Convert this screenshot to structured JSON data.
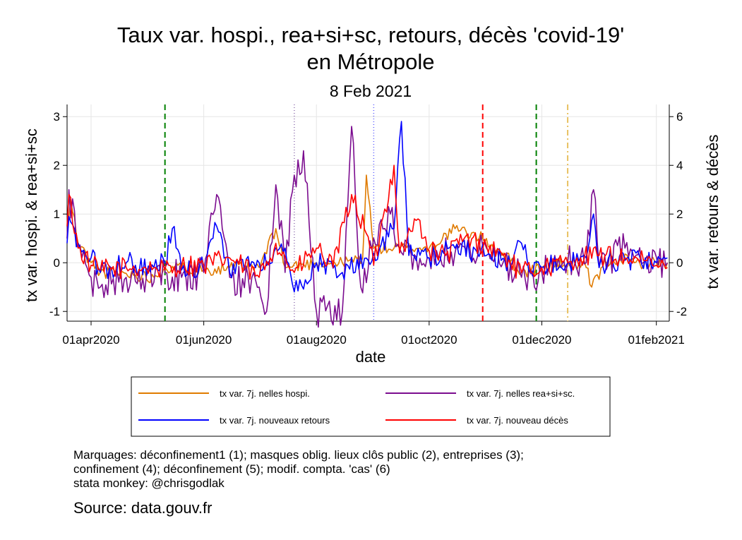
{
  "chart_data": {
    "type": "line",
    "title_line1": "Taux var. hospi., rea+si+sc, retours, décès 'covid-19'",
    "title_line2": "en Métropole",
    "subtitle": "8 Feb 2021",
    "xlabel": "date",
    "ylabel_left": "tx var. hospi. & rea+si+sc",
    "ylabel_right": "tx var. retours & décès",
    "x_range": [
      "2020-03-19",
      "2021-02-08"
    ],
    "x_ticks": [
      {
        "date": "2020-04-01",
        "label": "01apr2020"
      },
      {
        "date": "2020-06-01",
        "label": "01jun2020"
      },
      {
        "date": "2020-08-01",
        "label": "01aug2020"
      },
      {
        "date": "2020-10-01",
        "label": "01oct2020"
      },
      {
        "date": "2020-12-01",
        "label": "01dec2020"
      },
      {
        "date": "2021-02-01",
        "label": "01feb2021"
      }
    ],
    "ylim_left": [
      -1.2,
      3.25
    ],
    "yticks_left": [
      "-1",
      "0",
      "1",
      "2",
      "3"
    ],
    "ylim_right": [
      -2.4,
      6.5
    ],
    "yticks_right": [
      "-2",
      "0",
      "2",
      "4",
      "6"
    ],
    "grid": true,
    "legend_position": "bottom",
    "series": [
      {
        "name": "tx var. 7j. nelles hospi.",
        "color": "#E07B00",
        "axis": "left",
        "points": [
          [
            "2020-03-19",
            0.5
          ],
          [
            "2020-03-21",
            1.3
          ],
          [
            "2020-03-25",
            0.4
          ],
          [
            "2020-04-01",
            0.0
          ],
          [
            "2020-04-06",
            -0.2
          ],
          [
            "2020-04-15",
            -0.2
          ],
          [
            "2020-04-25",
            -0.25
          ],
          [
            "2020-05-05",
            -0.3
          ],
          [
            "2020-05-11",
            -0.1
          ],
          [
            "2020-05-20",
            -0.1
          ],
          [
            "2020-06-01",
            -0.15
          ],
          [
            "2020-06-15",
            -0.1
          ],
          [
            "2020-07-01",
            -0.1
          ],
          [
            "2020-07-10",
            0.7
          ],
          [
            "2020-07-15",
            -0.1
          ],
          [
            "2020-08-01",
            0.0
          ],
          [
            "2020-08-15",
            0.0
          ],
          [
            "2020-08-26",
            0.1
          ],
          [
            "2020-08-28",
            1.8
          ],
          [
            "2020-09-01",
            0.3
          ],
          [
            "2020-09-15",
            0.3
          ],
          [
            "2020-10-01",
            0.3
          ],
          [
            "2020-10-15",
            0.7
          ],
          [
            "2020-10-30",
            0.5
          ],
          [
            "2020-11-10",
            0.2
          ],
          [
            "2020-11-20",
            -0.2
          ],
          [
            "2020-12-01",
            -0.1
          ],
          [
            "2020-12-15",
            0.0
          ],
          [
            "2020-12-25",
            -0.1
          ],
          [
            "2020-12-28",
            -0.5
          ],
          [
            "2021-01-05",
            0.0
          ],
          [
            "2021-01-12",
            0.1
          ],
          [
            "2021-01-20",
            0.0
          ],
          [
            "2021-02-01",
            0.0
          ],
          [
            "2021-02-07",
            0.0
          ]
        ]
      },
      {
        "name": "tx var. 7j. nelles rea+si+sc.",
        "color": "#7B0C8F",
        "axis": "left",
        "points": [
          [
            "2020-03-19",
            0.5
          ],
          [
            "2020-03-20",
            1.5
          ],
          [
            "2020-03-25",
            0.3
          ],
          [
            "2020-04-01",
            -0.3
          ],
          [
            "2020-04-06",
            -0.5
          ],
          [
            "2020-04-20",
            -0.3
          ],
          [
            "2020-05-05",
            -0.4
          ],
          [
            "2020-05-11",
            -0.2
          ],
          [
            "2020-05-20",
            -0.3
          ],
          [
            "2020-06-01",
            -0.2
          ],
          [
            "2020-06-08",
            1.4
          ],
          [
            "2020-06-15",
            -0.3
          ],
          [
            "2020-07-01",
            -0.5
          ],
          [
            "2020-07-05",
            -1.0
          ],
          [
            "2020-07-10",
            1.6
          ],
          [
            "2020-07-15",
            -0.2
          ],
          [
            "2020-07-20",
            1.8
          ],
          [
            "2020-07-25",
            2.3
          ],
          [
            "2020-08-01",
            -1.0
          ],
          [
            "2020-08-15",
            -1.0
          ],
          [
            "2020-08-20",
            2.8
          ],
          [
            "2020-08-25",
            -0.5
          ],
          [
            "2020-09-01",
            0.5
          ],
          [
            "2020-09-10",
            1.0
          ],
          [
            "2020-09-15",
            0.3
          ],
          [
            "2020-10-01",
            0.1
          ],
          [
            "2020-10-15",
            0.2
          ],
          [
            "2020-11-01",
            0.3
          ],
          [
            "2020-11-10",
            0.0
          ],
          [
            "2020-11-20",
            -0.3
          ],
          [
            "2020-12-01",
            -0.2
          ],
          [
            "2020-12-15",
            0.0
          ],
          [
            "2020-12-25",
            0.0
          ],
          [
            "2020-12-29",
            1.5
          ],
          [
            "2021-01-01",
            -0.1
          ],
          [
            "2021-01-15",
            0.3
          ],
          [
            "2021-01-25",
            0.0
          ],
          [
            "2021-02-07",
            0.0
          ]
        ]
      },
      {
        "name": "tx var. 7j. nouveaux retours",
        "color": "#0000FF",
        "axis": "right",
        "points": [
          [
            "2020-03-19",
            0.8
          ],
          [
            "2020-03-20",
            1.9
          ],
          [
            "2020-03-25",
            0.8
          ],
          [
            "2020-04-01",
            0.2
          ],
          [
            "2020-04-06",
            -0.4
          ],
          [
            "2020-04-20",
            0.0
          ],
          [
            "2020-05-05",
            -0.2
          ],
          [
            "2020-05-11",
            0.0
          ],
          [
            "2020-05-15",
            1.4
          ],
          [
            "2020-05-20",
            -0.3
          ],
          [
            "2020-06-01",
            -0.2
          ],
          [
            "2020-06-08",
            1.5
          ],
          [
            "2020-06-15",
            -0.4
          ],
          [
            "2020-07-01",
            0.0
          ],
          [
            "2020-07-15",
            0.6
          ],
          [
            "2020-07-20",
            -1.2
          ],
          [
            "2020-08-01",
            0.0
          ],
          [
            "2020-08-15",
            -0.4
          ],
          [
            "2020-09-01",
            0.4
          ],
          [
            "2020-09-12",
            1.4
          ],
          [
            "2020-09-16",
            5.8
          ],
          [
            "2020-09-20",
            0.3
          ],
          [
            "2020-10-01",
            0.2
          ],
          [
            "2020-10-15",
            0.6
          ],
          [
            "2020-11-01",
            0.3
          ],
          [
            "2020-11-15",
            0.0
          ],
          [
            "2020-11-20",
            0.8
          ],
          [
            "2020-11-25",
            -0.3
          ],
          [
            "2020-12-01",
            -0.2
          ],
          [
            "2020-12-15",
            0.0
          ],
          [
            "2020-12-25",
            0.2
          ],
          [
            "2020-12-29",
            2.0
          ],
          [
            "2021-01-01",
            -0.2
          ],
          [
            "2021-01-15",
            0.1
          ],
          [
            "2021-02-01",
            0.0
          ],
          [
            "2021-02-07",
            0.2
          ]
        ]
      },
      {
        "name": "tx var. 7j. nouveau décès",
        "color": "#FF0000",
        "axis": "right",
        "points": [
          [
            "2020-03-19",
            1.5
          ],
          [
            "2020-03-20",
            2.8
          ],
          [
            "2020-03-25",
            0.6
          ],
          [
            "2020-04-01",
            -0.1
          ],
          [
            "2020-04-06",
            -0.3
          ],
          [
            "2020-04-20",
            -0.2
          ],
          [
            "2020-05-05",
            -0.2
          ],
          [
            "2020-05-11",
            -0.3
          ],
          [
            "2020-05-20",
            -0.1
          ],
          [
            "2020-06-01",
            -0.1
          ],
          [
            "2020-06-15",
            0.2
          ],
          [
            "2020-07-01",
            -0.6
          ],
          [
            "2020-07-10",
            0.8
          ],
          [
            "2020-07-20",
            -0.4
          ],
          [
            "2020-08-01",
            0.6
          ],
          [
            "2020-08-10",
            -0.2
          ],
          [
            "2020-08-20",
            2.8
          ],
          [
            "2020-08-28",
            1.2
          ],
          [
            "2020-09-01",
            -0.1
          ],
          [
            "2020-09-12",
            4.0
          ],
          [
            "2020-09-15",
            0.4
          ],
          [
            "2020-09-25",
            1.8
          ],
          [
            "2020-10-01",
            0.5
          ],
          [
            "2020-10-10",
            0.3
          ],
          [
            "2020-10-20",
            1.0
          ],
          [
            "2020-11-01",
            0.7
          ],
          [
            "2020-11-10",
            0.3
          ],
          [
            "2020-11-20",
            -0.4
          ],
          [
            "2020-12-01",
            -0.2
          ],
          [
            "2020-12-15",
            0.0
          ],
          [
            "2020-12-20",
            0.2
          ],
          [
            "2021-01-01",
            0.3
          ],
          [
            "2021-01-15",
            0.2
          ],
          [
            "2021-02-01",
            -0.1
          ],
          [
            "2021-02-07",
            -0.2
          ]
        ]
      }
    ],
    "markers": [
      {
        "date": "2020-05-11",
        "style": "green-dashed"
      },
      {
        "date": "2020-07-20",
        "style": "purple-dotted"
      },
      {
        "date": "2020-09-01",
        "style": "blue-dotted"
      },
      {
        "date": "2020-10-30",
        "style": "red-dashed"
      },
      {
        "date": "2020-11-28",
        "style": "green-dashed"
      },
      {
        "date": "2020-12-15",
        "style": "gold-dashdot"
      }
    ]
  },
  "notes": {
    "line1": "Marquages: déconfinement1 (1); masques oblig. lieux clôs public (2), entreprises (3);",
    "line2": "confinement (4); déconfinement (5); modif. compta. 'cas' (6)",
    "line3": "stata monkey: @chrisgodlak"
  },
  "source": "Source: data.gouv.fr",
  "colors": {
    "hospi": "#E07B00",
    "rea": "#7B0C8F",
    "retours": "#0000FF",
    "deces": "#FF0000",
    "grid": "#e6e6e6",
    "marker_green": "#008000",
    "marker_red": "#FF0000",
    "marker_purple": "#9070B0",
    "marker_blue": "#6060FF",
    "marker_gold": "#E8C060"
  }
}
